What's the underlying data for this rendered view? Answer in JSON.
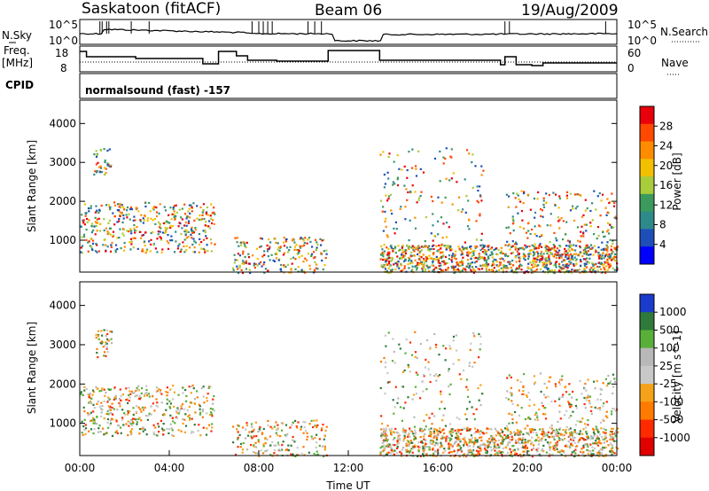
{
  "header": {
    "radar_label": "Saskatoon (fitACF)",
    "beam_label": "Beam 06",
    "date_label": "19/Aug/2009"
  },
  "strip_panels": {
    "noise": {
      "left_label": "N.Sky",
      "right_label": "N.Search",
      "left_ticks": [
        "10^5",
        "10^0"
      ],
      "right_ticks": [
        "10^5",
        "10^0"
      ]
    },
    "frequency": {
      "left_label_line1": "Freq.",
      "left_label_line2": "[MHz]",
      "left_ticks": [
        "18",
        "8"
      ],
      "right_label": "Nave",
      "right_ticks": [
        "60",
        "0"
      ]
    },
    "cpid": {
      "left_label": "CPID",
      "mode_text": "normalsound (fast) -157"
    }
  },
  "chart_data": [
    {
      "type": "heatmap",
      "panel": "power",
      "ylabel": "Slant Range [km]",
      "yticks": [
        1000,
        2000,
        3000,
        4000
      ],
      "ylim": [
        180,
        4600
      ],
      "colorbar_label": "Power [dB]",
      "colorbar_ticks": [
        "28",
        "24",
        "20",
        "16",
        "12",
        "8",
        "4"
      ],
      "colorbar_colors": [
        "#e8000b",
        "#ff4800",
        "#ff8c00",
        "#f2c000",
        "#a8cc3a",
        "#3c9a5c",
        "#2e8a8a",
        "#1e4fb8",
        "#0000ff"
      ],
      "scatter_regions": [
        {
          "x": [
            0.0,
            6.0
          ],
          "range": [
            700,
            2000
          ],
          "level": 0.65
        },
        {
          "x": [
            0.6,
            1.4
          ],
          "range": [
            2700,
            3400
          ],
          "level": 0.4
        },
        {
          "x": [
            6.8,
            11.0
          ],
          "range": [
            180,
            1100
          ],
          "level": 0.45
        },
        {
          "x": [
            13.4,
            24.0
          ],
          "range": [
            180,
            900
          ],
          "level": 0.85
        },
        {
          "x": [
            13.4,
            18.0
          ],
          "range": [
            900,
            3400
          ],
          "level": 0.3
        },
        {
          "x": [
            19.0,
            24.0
          ],
          "range": [
            600,
            2300
          ],
          "level": 0.4
        }
      ]
    },
    {
      "type": "heatmap",
      "panel": "velocity",
      "ylabel": "Slant Range [km]",
      "yticks": [
        1000,
        2000,
        3000,
        4000
      ],
      "ylim": [
        180,
        4600
      ],
      "xlabel": "Time UT",
      "xticks": [
        "00:00",
        "04:00",
        "08:00",
        "12:00",
        "16:00",
        "20:00",
        "00:00"
      ],
      "xlim": [
        0,
        24
      ],
      "colorbar_label": "Velocity [m s^-1]",
      "colorbar_ticks": [
        "1000",
        "500",
        "100",
        "25",
        "-25",
        "-100",
        "-500",
        "-1000"
      ],
      "colorbar_colors": [
        "#1a3ccc",
        "#2f7a3a",
        "#58b03a",
        "#b8b8b8",
        "#c8c8c8",
        "#f5a21a",
        "#ff7a00",
        "#ff2a00",
        "#e00000"
      ],
      "scatter_regions": [
        {
          "x": [
            0.0,
            6.0
          ],
          "range": [
            700,
            2000
          ],
          "level": 0.6
        },
        {
          "x": [
            0.6,
            1.4
          ],
          "range": [
            2700,
            3400
          ],
          "level": 0.4
        },
        {
          "x": [
            6.8,
            11.0
          ],
          "range": [
            180,
            1100
          ],
          "level": 0.4
        },
        {
          "x": [
            13.4,
            24.0
          ],
          "range": [
            180,
            900
          ],
          "level": 0.8
        },
        {
          "x": [
            13.4,
            18.0
          ],
          "range": [
            900,
            3400
          ],
          "level": 0.3
        },
        {
          "x": [
            19.0,
            24.0
          ],
          "range": [
            600,
            2300
          ],
          "level": 0.4
        }
      ]
    }
  ]
}
